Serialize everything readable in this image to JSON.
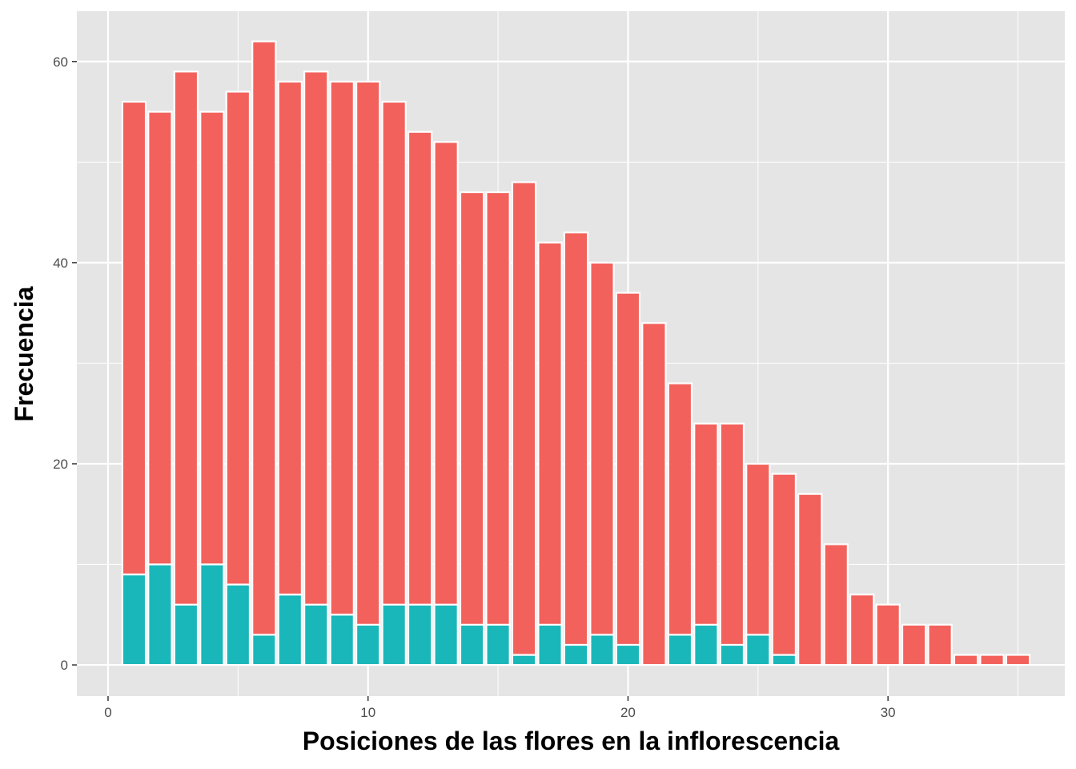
{
  "chart_data": {
    "type": "bar",
    "stacked": true,
    "xlabel": "Posiciones de las flores en la inflorescencia",
    "ylabel": "Frecuencia",
    "xlim": [
      -1.2,
      36.8
    ],
    "ylim": [
      -3.1,
      65
    ],
    "x_ticks": [
      0,
      10,
      20,
      30
    ],
    "y_ticks": [
      0,
      20,
      40,
      60
    ],
    "grid": true,
    "legend": "none",
    "x": [
      1,
      2,
      3,
      4,
      5,
      6,
      7,
      8,
      9,
      10,
      11,
      12,
      13,
      14,
      15,
      16,
      17,
      18,
      19,
      20,
      21,
      22,
      23,
      24,
      25,
      26,
      27,
      28,
      29,
      30,
      31,
      32,
      33,
      34,
      35
    ],
    "series": [
      {
        "color": "#19b7b9",
        "values": [
          9,
          10,
          6,
          10,
          8,
          3,
          7,
          6,
          5,
          4,
          6,
          6,
          6,
          4,
          4,
          1,
          4,
          2,
          3,
          2,
          0,
          3,
          4,
          2,
          3,
          1,
          0,
          0,
          0,
          0,
          0,
          0,
          0,
          0,
          0
        ]
      },
      {
        "color": "#f3615c",
        "values": [
          47,
          45,
          53,
          45,
          49,
          59,
          51,
          53,
          53,
          54,
          50,
          47,
          46,
          43,
          43,
          47,
          38,
          41,
          37,
          35,
          34,
          25,
          20,
          22,
          17,
          18,
          17,
          12,
          7,
          6,
          4,
          4,
          1,
          1,
          1
        ]
      }
    ],
    "colors": {
      "panel": "#e5e5e5",
      "grid_major": "#ffffff",
      "bar_outline": "#ffffff"
    }
  }
}
